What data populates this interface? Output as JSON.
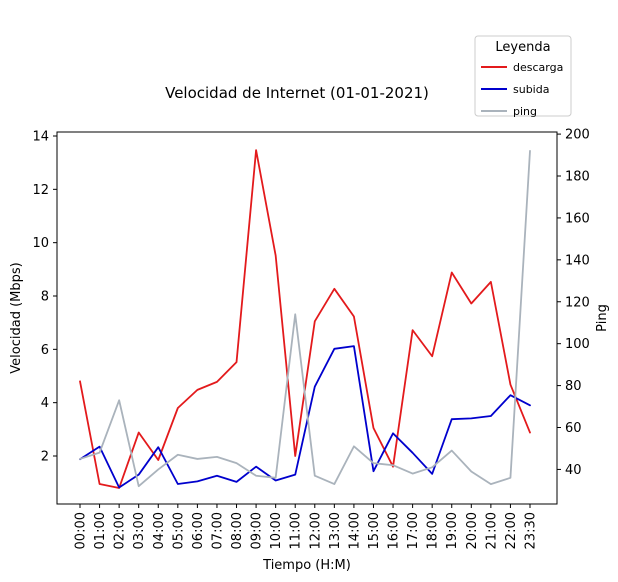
{
  "chart_data": {
    "type": "line",
    "title": "Velocidad de Internet (01-01-2021)",
    "xlabel": "Tiempo (H:M)",
    "ylabel": "Velocidad (Mbps)",
    "y2label": "Ping",
    "ylim": [
      0.2,
      14.15
    ],
    "y2lim": [
      23.5,
      201
    ],
    "yticks": [
      2,
      4,
      6,
      8,
      10,
      12,
      14
    ],
    "y2ticks": [
      40,
      60,
      80,
      100,
      120,
      140,
      160,
      180,
      200
    ],
    "legend": {
      "title": "Leyenda",
      "position": "top-right"
    },
    "categories": [
      "00:00",
      "01:00",
      "02:00",
      "03:00",
      "04:00",
      "05:00",
      "06:00",
      "07:00",
      "08:00",
      "09:00",
      "10:00",
      "11:00",
      "12:00",
      "13:00",
      "14:00",
      "15:00",
      "16:00",
      "17:00",
      "18:00",
      "19:00",
      "20:00",
      "21:00",
      "22:00",
      "23:30"
    ],
    "series": [
      {
        "name": "descarga",
        "axis": "left",
        "color": "#e31a1c",
        "values": [
          4.8,
          0.95,
          0.8,
          2.88,
          1.85,
          3.8,
          4.48,
          4.78,
          5.52,
          13.47,
          9.52,
          2.0,
          7.05,
          8.27,
          7.23,
          3.05,
          1.6,
          6.72,
          5.74,
          8.88,
          7.72,
          8.53,
          4.68,
          2.88
        ]
      },
      {
        "name": "subida",
        "axis": "left",
        "color": "#0000cd",
        "values": [
          1.88,
          2.35,
          0.82,
          1.3,
          2.33,
          0.95,
          1.05,
          1.26,
          1.03,
          1.6,
          1.08,
          1.3,
          4.6,
          6.02,
          6.12,
          1.43,
          2.85,
          2.12,
          1.33,
          3.38,
          3.41,
          3.5,
          4.28,
          3.9
        ]
      },
      {
        "name": "ping",
        "axis": "right",
        "color": "#aab3bc",
        "values": [
          45,
          48,
          73,
          32,
          40,
          47,
          45,
          46,
          43,
          37,
          36,
          114,
          37,
          33,
          51,
          43,
          42,
          38,
          41,
          49,
          39,
          33,
          36,
          192
        ]
      }
    ]
  }
}
